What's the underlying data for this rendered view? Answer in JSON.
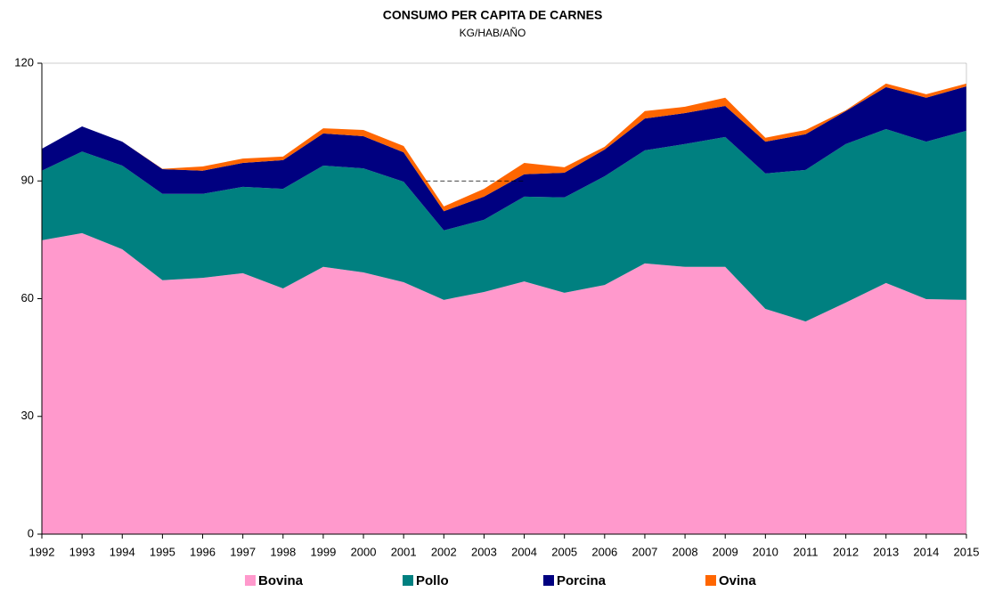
{
  "chart_data": {
    "type": "stacked_area",
    "title": "CONSUMO PER CAPITA DE CARNES",
    "subtitle": "KG/HAB/AÑO",
    "categories": [
      "1992",
      "1993",
      "1994",
      "1995",
      "1996",
      "1997",
      "1998",
      "1999",
      "2000",
      "2001",
      "2002",
      "2003",
      "2004",
      "2005",
      "2006",
      "2007",
      "2008",
      "2009",
      "2010",
      "2011",
      "2012",
      "2013",
      "2014",
      "2015"
    ],
    "series": [
      {
        "name": "Bovina",
        "color": "#ff99cc",
        "values": [
          74.9,
          76.7,
          72.6,
          64.7,
          65.3,
          66.5,
          62.6,
          68.1,
          66.7,
          64.2,
          59.7,
          61.7,
          64.4,
          61.5,
          63.5,
          69.0,
          68.1,
          68.1,
          57.4,
          54.2,
          59.0,
          64.0,
          59.9,
          59.7
        ]
      },
      {
        "name": "Pollo",
        "color": "#008080",
        "values": [
          17.7,
          20.8,
          21.3,
          22.0,
          21.4,
          22.0,
          25.4,
          25.8,
          26.5,
          25.6,
          17.7,
          18.4,
          21.6,
          24.3,
          27.7,
          28.8,
          31.3,
          33.1,
          34.5,
          38.6,
          40.4,
          39.2,
          40.1,
          43.1
        ]
      },
      {
        "name": "Porcina",
        "color": "#000080",
        "values": [
          5.6,
          6.4,
          6.1,
          6.3,
          5.9,
          6.1,
          7.3,
          8.2,
          8.2,
          7.5,
          4.9,
          5.9,
          5.7,
          6.3,
          6.8,
          8.1,
          7.9,
          7.9,
          8.1,
          9.1,
          8.4,
          10.7,
          11.2,
          11.3
        ]
      },
      {
        "name": "Ovina",
        "color": "#ff6600",
        "values": [
          0.0,
          0.0,
          0.0,
          0.1,
          1.1,
          1.1,
          0.9,
          1.3,
          1.6,
          1.6,
          1.2,
          2.0,
          2.9,
          1.4,
          0.7,
          1.9,
          1.6,
          2.1,
          1.0,
          1.1,
          0.2,
          0.9,
          0.9,
          0.7
        ]
      }
    ],
    "ylim": [
      0,
      120
    ],
    "yticks": [
      0,
      30,
      60,
      90,
      120
    ],
    "reference_line": {
      "value": 90,
      "from": "2002",
      "to": "2004"
    },
    "legend": "bottom"
  }
}
